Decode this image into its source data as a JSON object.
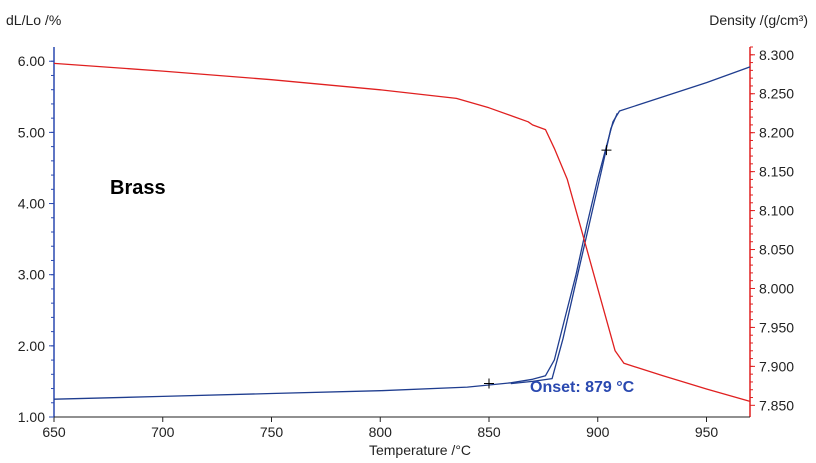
{
  "chart_data": {
    "type": "line",
    "title": "",
    "xlabel": "Temperature /°C",
    "y_left_label": "dL/Lo /%",
    "y_right_label": "Density /(g/cm³)",
    "xlim": [
      650,
      970
    ],
    "ylim_left": [
      1.0,
      6.2
    ],
    "ylim_right": [
      7.835,
      8.31
    ],
    "x_ticks": [
      "650",
      "700",
      "750",
      "800",
      "850",
      "900",
      "950"
    ],
    "y_left_ticks": [
      "1.00",
      "2.00",
      "3.00",
      "4.00",
      "5.00",
      "6.00"
    ],
    "y_right_ticks": [
      "7.850",
      "7.900",
      "7.950",
      "8.000",
      "8.050",
      "8.100",
      "8.150",
      "8.200",
      "8.250",
      "8.300"
    ],
    "colors": {
      "dl": "#1f3d8f",
      "density": "#e02020",
      "axis_left": "#2a49b0",
      "axis_right": "#e02020"
    },
    "series": [
      {
        "key": "dl",
        "values": [
          [
            650,
            1.25
          ],
          [
            700,
            1.29
          ],
          [
            750,
            1.33
          ],
          [
            800,
            1.37
          ],
          [
            840,
            1.42
          ],
          [
            860,
            1.48
          ],
          [
            870,
            1.53
          ],
          [
            876,
            1.58
          ],
          [
            880,
            1.8
          ],
          [
            885,
            2.4
          ],
          [
            890,
            3.0
          ],
          [
            895,
            3.7
          ],
          [
            900,
            4.35
          ],
          [
            904,
            4.8
          ],
          [
            907,
            5.15
          ],
          [
            910,
            5.3
          ],
          [
            920,
            5.4
          ],
          [
            935,
            5.55
          ],
          [
            950,
            5.7
          ],
          [
            970,
            5.92
          ]
        ]
      },
      {
        "key": "dl-2",
        "values": [
          [
            860,
            1.47
          ],
          [
            870,
            1.5
          ],
          [
            879,
            1.54
          ],
          [
            884,
            2.1
          ],
          [
            890,
            2.9
          ],
          [
            896,
            3.7
          ],
          [
            902,
            4.5
          ],
          [
            906,
            5.05
          ],
          [
            909,
            5.27
          ]
        ]
      },
      {
        "key": "density",
        "values": [
          [
            650,
            8.289
          ],
          [
            700,
            8.279
          ],
          [
            750,
            8.268
          ],
          [
            800,
            8.255
          ],
          [
            835,
            8.244
          ],
          [
            850,
            8.232
          ],
          [
            862,
            8.22
          ],
          [
            868,
            8.214
          ],
          [
            870,
            8.21
          ],
          [
            876,
            8.204
          ],
          [
            880,
            8.18
          ],
          [
            886,
            8.14
          ],
          [
            892,
            8.08
          ],
          [
            898,
            8.02
          ],
          [
            904,
            7.96
          ],
          [
            908,
            7.92
          ],
          [
            912,
            7.904
          ],
          [
            930,
            7.888
          ],
          [
            950,
            7.871
          ],
          [
            970,
            7.855
          ]
        ]
      }
    ],
    "markers": [
      {
        "x": 850,
        "y": 1.47,
        "axis": "left"
      },
      {
        "x": 904,
        "y": 4.75,
        "axis": "left"
      }
    ],
    "annotations": {
      "sample_label": "Brass",
      "onset_label": "Onset: 879 °C",
      "onset_color": "#2a49b0"
    }
  }
}
